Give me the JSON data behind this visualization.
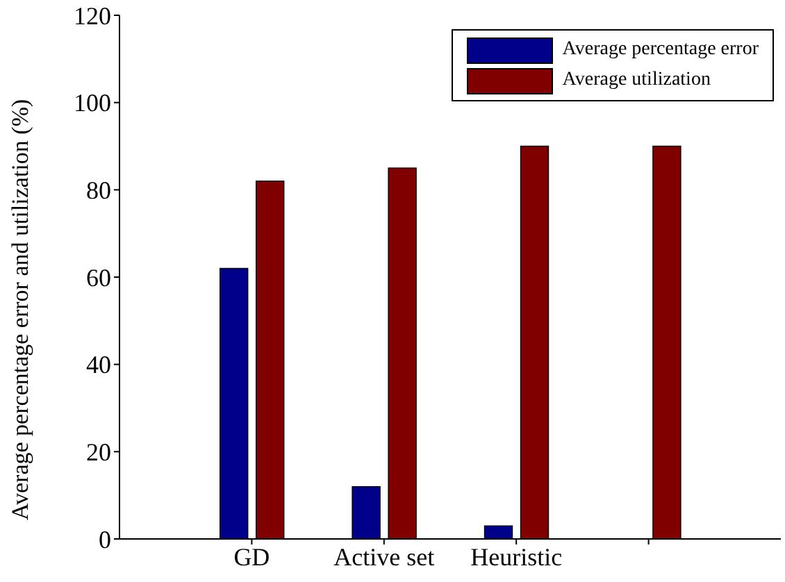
{
  "chart_data": {
    "type": "bar",
    "ylabel": "Average percentage error and utilization (%)",
    "categories": [
      "GD",
      "Active set",
      "Heuristic",
      null
    ],
    "series": [
      {
        "name": "Average percentage error",
        "color": "#00008b",
        "values": [
          62,
          12,
          3,
          0
        ]
      },
      {
        "name": "Average utilization",
        "color": "#800000",
        "values": [
          82,
          85,
          90,
          90
        ]
      }
    ],
    "ylim": [
      0,
      120
    ],
    "yticks": [
      0,
      20,
      40,
      60,
      80,
      100,
      120
    ],
    "grid": false,
    "legend": "top right"
  }
}
